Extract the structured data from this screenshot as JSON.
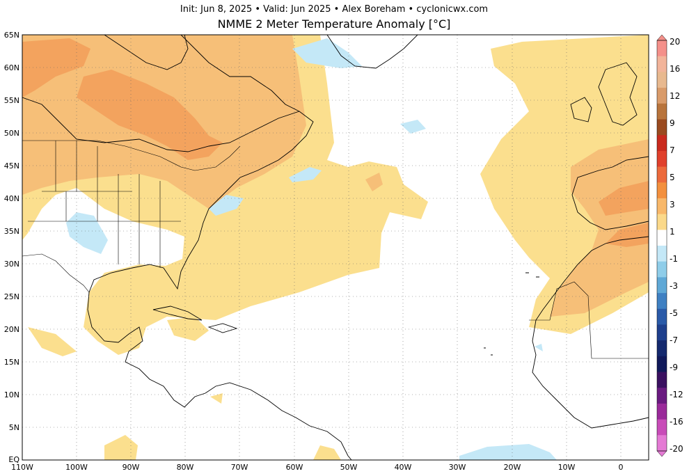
{
  "header": {
    "subtitle": "Init: Jun 8, 2025  •  Valid: Jun 2025  •  Alex Boreham  •  cyclonicwx.com",
    "title": "NMME 2 Meter Temperature Anomaly [°C]"
  },
  "map": {
    "region": "North Atlantic",
    "lat_range": [
      0,
      65
    ],
    "lon_range": [
      -110,
      5
    ],
    "lat_labels": [
      "65N",
      "60N",
      "55N",
      "50N",
      "45N",
      "40N",
      "35N",
      "30N",
      "25N",
      "20N",
      "15N",
      "10N",
      "5N",
      "EQ"
    ],
    "lon_labels": [
      "110W",
      "100W",
      "90W",
      "80W",
      "70W",
      "60W",
      "50W",
      "40W",
      "30W",
      "20W",
      "10W",
      "0"
    ],
    "gridlines": "dotted"
  },
  "colorbar": {
    "levels": [
      "20",
      "16",
      "12",
      "9",
      "7",
      "5",
      "3",
      "1",
      "-1",
      "-3",
      "-5",
      "-7",
      "-9",
      "-12",
      "-16",
      "-20"
    ],
    "colors": [
      "#f4908a",
      "#f2b49a",
      "#e8b98f",
      "#d99b6a",
      "#b8743c",
      "#9a4a20",
      "#c92a1e",
      "#e0402c",
      "#ec6a3c",
      "#f3903e",
      "#f8b86a",
      "#fbd98a",
      "#ffffff",
      "#c4e8f7",
      "#8fcde9",
      "#5fa8d6",
      "#3f80c2",
      "#2a5aa8",
      "#1e3f8c",
      "#14296e",
      "#10195a",
      "#3a1060",
      "#6a1a80",
      "#9a2a9a",
      "#c84cb8",
      "#e47ad4"
    ]
  }
}
